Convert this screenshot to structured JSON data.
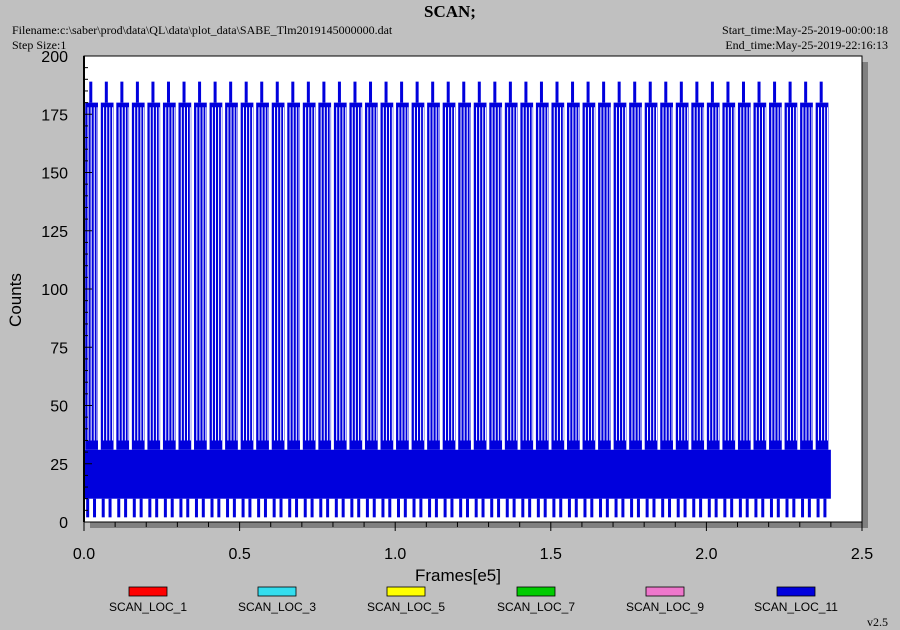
{
  "header": {
    "title": "SCAN;",
    "filename": "Filename:c:\\saber\\prod\\data\\QL\\data\\plot_data\\SABE_Tlm2019145000000.dat",
    "step_size": "Step Size:1",
    "start_time": "Start_time:May-25-2019-00:00:18",
    "end_time": "End_time:May-25-2019-22:16:13"
  },
  "version": "v2.5",
  "colors": {
    "background": "#c0c0c0",
    "plot_area": "#ffffff",
    "plot_shadow": "#808080"
  },
  "chart_data": {
    "type": "line",
    "title": "",
    "xlabel": "Frames[e5]",
    "ylabel": "Counts",
    "xlim": [
      0,
      2.5
    ],
    "ylim": [
      0,
      200
    ],
    "xticks": [
      0.0,
      0.5,
      1.0,
      1.5,
      2.0,
      2.5
    ],
    "xtick_labels": [
      "0.0",
      "0.5",
      "1.0",
      "1.5",
      "2.0",
      "2.5"
    ],
    "yticks": [
      0,
      25,
      50,
      75,
      100,
      125,
      150,
      175,
      200
    ],
    "ytick_labels": [
      "0",
      "25",
      "50",
      "75",
      "100",
      "125",
      "150",
      "175",
      "200"
    ],
    "grid": false,
    "legend_position": "bottom",
    "series": [
      {
        "name": "SCAN_LOC_1",
        "color": "#ff0000",
        "values": []
      },
      {
        "name": "SCAN_LOC_3",
        "color": "#33ddee",
        "values": []
      },
      {
        "name": "SCAN_LOC_5",
        "color": "#ffff00",
        "values": []
      },
      {
        "name": "SCAN_LOC_7",
        "color": "#00cc00",
        "values": []
      },
      {
        "name": "SCAN_LOC_9",
        "color": "#ee77cc",
        "values": []
      },
      {
        "name": "SCAN_LOC_11",
        "color": "#0000dd",
        "x_range": [
          0.003,
          2.4
        ],
        "band": [
          10,
          31
        ],
        "upper_level": 180,
        "peak_level": 189,
        "lower_level": 2,
        "cycle_count": 48,
        "values": []
      }
    ]
  }
}
